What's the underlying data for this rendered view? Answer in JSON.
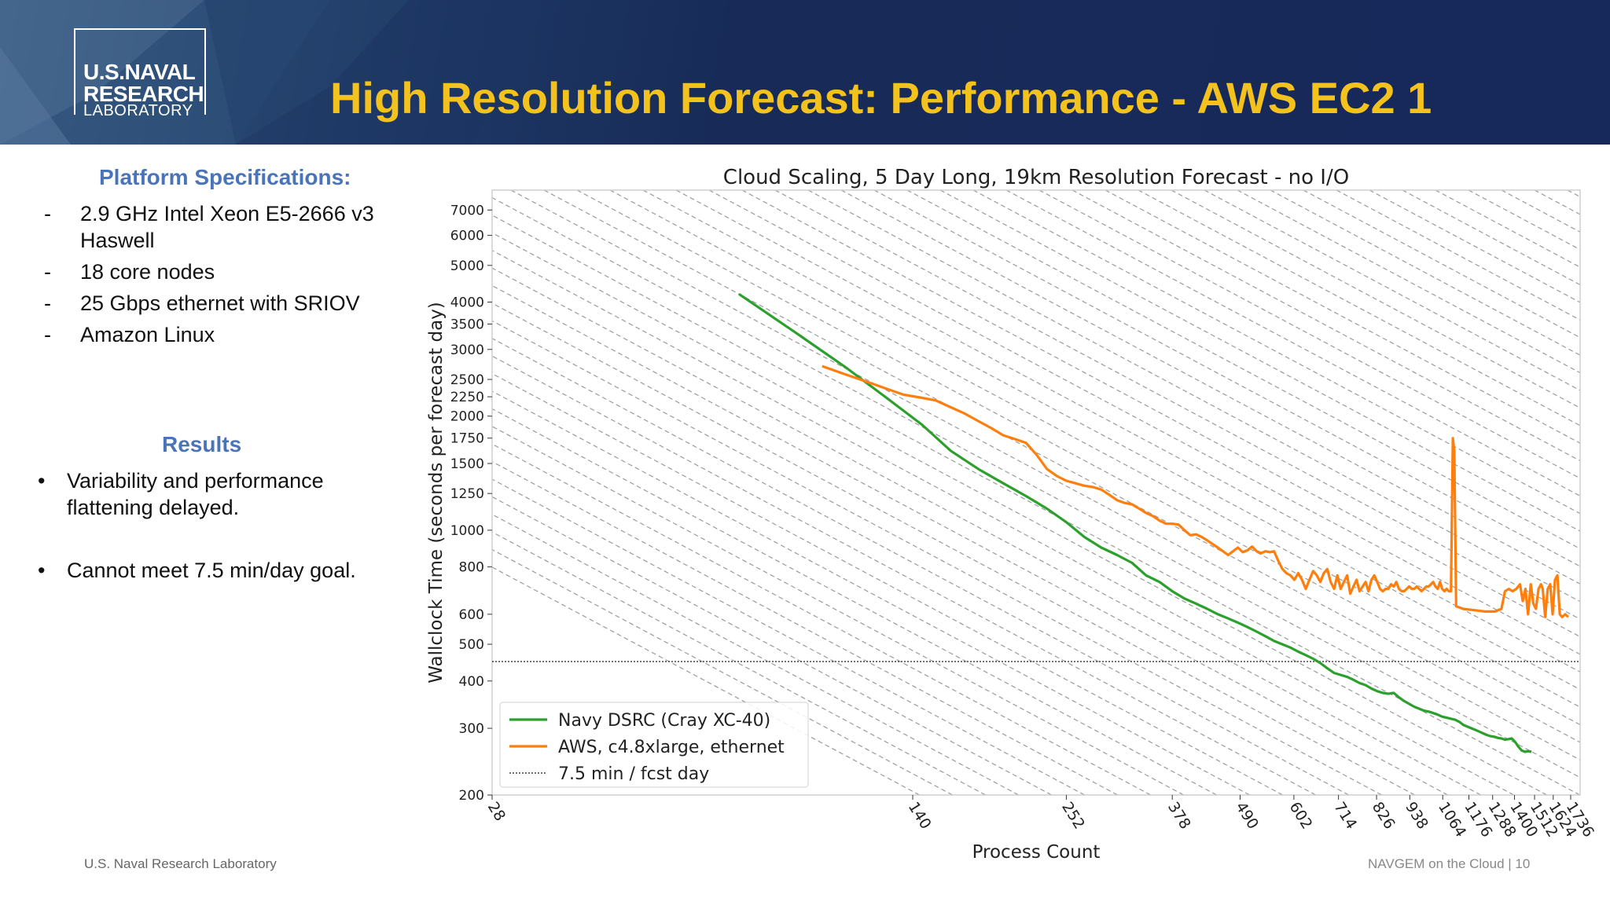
{
  "header": {
    "logo_line1": "U.S.NAVAL",
    "logo_line2": "RESEARCH",
    "logo_line3": "LABORATORY",
    "title": "High Resolution Forecast: Performance - AWS EC2 1"
  },
  "left": {
    "spec_heading": "Platform Specifications:",
    "spec_items": [
      {
        "marker": "-",
        "text": "2.9 GHz Intel Xeon E5-2666 v3 Haswell"
      },
      {
        "marker": "-",
        "text": "18 core nodes"
      },
      {
        "marker": "-",
        "text": "25 Gbps ethernet with SRIOV"
      },
      {
        "marker": "-",
        "text": "Amazon Linux"
      }
    ],
    "results_heading": "Results",
    "result_items": [
      {
        "marker": "•",
        "text": "Variability and performance flattening delayed."
      },
      {
        "marker": "•",
        "text": "Cannot meet 7.5 min/day goal."
      }
    ]
  },
  "footer": {
    "left": "U.S. Naval Research Laboratory",
    "right": "NAVGEM on the Cloud | 10"
  },
  "colors": {
    "header_bg": "#17285a",
    "title": "#f4c21c",
    "subheading": "#4a74b8",
    "navy_series": "#2ca02c",
    "aws_series": "#ff7f0e"
  },
  "chart_data": {
    "type": "line",
    "title": "Cloud Scaling, 5 Day Long, 19km Resolution Forecast - no I/O",
    "xlabel": "Process Count",
    "ylabel": "Wallclock Time (seconds per forecast day)",
    "x_scale": "log",
    "y_scale": "log",
    "xlim": [
      28,
      1800
    ],
    "ylim": [
      200,
      7900
    ],
    "x_ticks": [
      28,
      140,
      252,
      378,
      490,
      602,
      714,
      826,
      938,
      1064,
      1176,
      1288,
      1400,
      1512,
      1624,
      1736
    ],
    "y_ticks": [
      200,
      300,
      400,
      500,
      600,
      800,
      1000,
      1250,
      1500,
      1750,
      2000,
      2250,
      2500,
      3000,
      3500,
      4000,
      5000,
      6000,
      7000
    ],
    "grid": "diagonal hatch",
    "legend_position": "lower-left",
    "reference_line": {
      "name": "7.5 min / fcst day",
      "y": 450
    },
    "series": [
      {
        "name": "Navy DSRC (Cray XC-40)",
        "color": "#2ca02c",
        "points": [
          [
            72,
            4200
          ],
          [
            90,
            3300
          ],
          [
            108,
            2700
          ],
          [
            126,
            2250
          ],
          [
            145,
            1900
          ],
          [
            162,
            1620
          ],
          [
            180,
            1450
          ],
          [
            198,
            1330
          ],
          [
            216,
            1230
          ],
          [
            234,
            1140
          ],
          [
            252,
            1050
          ],
          [
            270,
            960
          ],
          [
            288,
            900
          ],
          [
            306,
            860
          ],
          [
            324,
            820
          ],
          [
            342,
            760
          ],
          [
            360,
            730
          ],
          [
            378,
            690
          ],
          [
            396,
            660
          ],
          [
            414,
            640
          ],
          [
            432,
            620
          ],
          [
            450,
            600
          ],
          [
            468,
            585
          ],
          [
            486,
            570
          ],
          [
            504,
            555
          ],
          [
            522,
            540
          ],
          [
            540,
            525
          ],
          [
            558,
            510
          ],
          [
            576,
            500
          ],
          [
            594,
            490
          ],
          [
            612,
            478
          ],
          [
            630,
            468
          ],
          [
            648,
            458
          ],
          [
            666,
            446
          ],
          [
            684,
            432
          ],
          [
            702,
            420
          ],
          [
            720,
            415
          ],
          [
            738,
            410
          ],
          [
            756,
            403
          ],
          [
            774,
            395
          ],
          [
            792,
            390
          ],
          [
            810,
            382
          ],
          [
            828,
            376
          ],
          [
            846,
            372
          ],
          [
            864,
            370
          ],
          [
            882,
            372
          ],
          [
            900,
            362
          ],
          [
            918,
            354
          ],
          [
            936,
            348
          ],
          [
            954,
            342
          ],
          [
            972,
            338
          ],
          [
            990,
            334
          ],
          [
            1008,
            332
          ],
          [
            1026,
            329
          ],
          [
            1044,
            326
          ],
          [
            1062,
            322
          ],
          [
            1080,
            320
          ],
          [
            1098,
            318
          ],
          [
            1116,
            316
          ],
          [
            1134,
            312
          ],
          [
            1152,
            306
          ],
          [
            1170,
            303
          ],
          [
            1188,
            300
          ],
          [
            1206,
            297
          ],
          [
            1224,
            294
          ],
          [
            1242,
            291
          ],
          [
            1260,
            288
          ],
          [
            1278,
            286
          ],
          [
            1296,
            285
          ],
          [
            1314,
            283
          ],
          [
            1332,
            282
          ],
          [
            1350,
            280
          ],
          [
            1368,
            281
          ],
          [
            1386,
            282
          ],
          [
            1404,
            276
          ],
          [
            1422,
            268
          ],
          [
            1440,
            262
          ],
          [
            1458,
            260
          ],
          [
            1476,
            261
          ],
          [
            1494,
            260
          ]
        ]
      },
      {
        "name": "AWS, c4.8xlarge, ethernet",
        "color": "#ff7f0e",
        "points": [
          [
            99,
            2710
          ],
          [
            108,
            2580
          ],
          [
            117,
            2470
          ],
          [
            126,
            2370
          ],
          [
            135,
            2280
          ],
          [
            144,
            2240
          ],
          [
            153,
            2200
          ],
          [
            162,
            2110
          ],
          [
            171,
            2030
          ],
          [
            180,
            1940
          ],
          [
            189,
            1860
          ],
          [
            198,
            1780
          ],
          [
            207,
            1740
          ],
          [
            216,
            1700
          ],
          [
            225,
            1580
          ],
          [
            234,
            1450
          ],
          [
            243,
            1390
          ],
          [
            252,
            1350
          ],
          [
            261,
            1330
          ],
          [
            270,
            1310
          ],
          [
            279,
            1300
          ],
          [
            288,
            1280
          ],
          [
            297,
            1240
          ],
          [
            306,
            1200
          ],
          [
            315,
            1180
          ],
          [
            324,
            1170
          ],
          [
            333,
            1140
          ],
          [
            342,
            1110
          ],
          [
            351,
            1090
          ],
          [
            360,
            1060
          ],
          [
            369,
            1040
          ],
          [
            378,
            1040
          ],
          [
            387,
            1035
          ],
          [
            396,
            1000
          ],
          [
            405,
            970
          ],
          [
            414,
            975
          ],
          [
            423,
            960
          ],
          [
            432,
            940
          ],
          [
            441,
            920
          ],
          [
            450,
            900
          ],
          [
            459,
            880
          ],
          [
            468,
            860
          ],
          [
            477,
            880
          ],
          [
            486,
            900
          ],
          [
            495,
            875
          ],
          [
            504,
            885
          ],
          [
            513,
            905
          ],
          [
            522,
            880
          ],
          [
            531,
            870
          ],
          [
            540,
            880
          ],
          [
            549,
            875
          ],
          [
            558,
            880
          ],
          [
            567,
            830
          ],
          [
            576,
            790
          ],
          [
            585,
            770
          ],
          [
            594,
            760
          ],
          [
            603,
            740
          ],
          [
            612,
            770
          ],
          [
            621,
            740
          ],
          [
            630,
            700
          ],
          [
            639,
            740
          ],
          [
            648,
            780
          ],
          [
            657,
            760
          ],
          [
            666,
            730
          ],
          [
            675,
            770
          ],
          [
            684,
            790
          ],
          [
            693,
            730
          ],
          [
            702,
            700
          ],
          [
            711,
            760
          ],
          [
            720,
            700
          ],
          [
            729,
            730
          ],
          [
            738,
            760
          ],
          [
            747,
            680
          ],
          [
            756,
            710
          ],
          [
            765,
            740
          ],
          [
            774,
            690
          ],
          [
            783,
            710
          ],
          [
            792,
            730
          ],
          [
            801,
            690
          ],
          [
            810,
            740
          ],
          [
            819,
            760
          ],
          [
            828,
            730
          ],
          [
            837,
            700
          ],
          [
            846,
            690
          ],
          [
            855,
            700
          ],
          [
            864,
            700
          ],
          [
            873,
            720
          ],
          [
            882,
            710
          ],
          [
            891,
            730
          ],
          [
            900,
            700
          ],
          [
            909,
            690
          ],
          [
            918,
            690
          ],
          [
            927,
            700
          ],
          [
            936,
            710
          ],
          [
            945,
            700
          ],
          [
            954,
            700
          ],
          [
            963,
            710
          ],
          [
            972,
            700
          ],
          [
            981,
            690
          ],
          [
            990,
            700
          ],
          [
            999,
            710
          ],
          [
            1008,
            710
          ],
          [
            1017,
            720
          ],
          [
            1026,
            730
          ],
          [
            1035,
            710
          ],
          [
            1044,
            700
          ],
          [
            1053,
            730
          ],
          [
            1062,
            700
          ],
          [
            1071,
            690
          ],
          [
            1080,
            700
          ],
          [
            1089,
            690
          ],
          [
            1098,
            690
          ],
          [
            1106,
            1750
          ],
          [
            1112,
            1620
          ],
          [
            1120,
            630
          ],
          [
            1150,
            620
          ],
          [
            1200,
            615
          ],
          [
            1250,
            610
          ],
          [
            1300,
            610
          ],
          [
            1332,
            620
          ],
          [
            1350,
            690
          ],
          [
            1370,
            700
          ],
          [
            1390,
            690
          ],
          [
            1410,
            700
          ],
          [
            1430,
            720
          ],
          [
            1445,
            650
          ],
          [
            1460,
            700
          ],
          [
            1475,
            600
          ],
          [
            1490,
            720
          ],
          [
            1505,
            640
          ],
          [
            1520,
            620
          ],
          [
            1535,
            700
          ],
          [
            1550,
            720
          ],
          [
            1560,
            700
          ],
          [
            1575,
            590
          ],
          [
            1590,
            700
          ],
          [
            1605,
            720
          ],
          [
            1620,
            600
          ],
          [
            1635,
            740
          ],
          [
            1650,
            760
          ],
          [
            1665,
            600
          ],
          [
            1680,
            590
          ],
          [
            1700,
            600
          ],
          [
            1720,
            590
          ]
        ]
      }
    ]
  }
}
